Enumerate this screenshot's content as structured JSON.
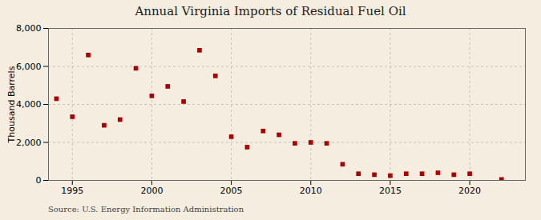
{
  "chart_data": {
    "type": "scatter",
    "title": "Annual Virginia Imports of Residual Fuel Oil",
    "ylabel": "Thousand Barrels",
    "annotation": "Source: U.S. Energy Information Administration",
    "x": [
      1994,
      1995,
      1996,
      1997,
      1998,
      1999,
      2000,
      2001,
      2002,
      2003,
      2004,
      2005,
      2006,
      2007,
      2008,
      2009,
      2010,
      2011,
      2012,
      2013,
      2014,
      2015,
      2016,
      2017,
      2018,
      2019,
      2020,
      2022
    ],
    "values": [
      4300,
      3350,
      6600,
      2900,
      3200,
      5900,
      4450,
      4950,
      4150,
      6850,
      5500,
      2300,
      1750,
      2600,
      2400,
      1950,
      2000,
      1950,
      850,
      350,
      300,
      250,
      350,
      350,
      400,
      300,
      350,
      50
    ],
    "color": "#aa0000",
    "marker": "square",
    "xlim": [
      1993.5,
      2023.5
    ],
    "xticks": [
      1995,
      2000,
      2005,
      2010,
      2015,
      2020
    ],
    "ylim": [
      0,
      8000
    ],
    "yticks": [
      0,
      {
        "value": 2000,
        "label": "2,000"
      },
      {
        "value": 4000,
        "label": "4,000"
      },
      {
        "value": 6000,
        "label": "6,000"
      },
      {
        "value": 8000,
        "label": "8,000"
      }
    ],
    "grid": true
  }
}
